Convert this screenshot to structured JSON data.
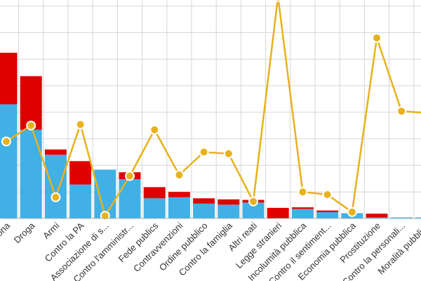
{
  "chart_data": {
    "type": "bar",
    "bar_mode": "stacked",
    "categories": [
      "Persona",
      "Droga",
      "Armi",
      "Contro la PA",
      "Associazione di s...",
      "Contro l'amministr...",
      "Fede publics",
      "Contravvenzioni",
      "Ordine pubblico",
      "Contro la famiglia",
      "Altri reati",
      "Legge stranieri",
      "Incolumità pubblica",
      "Contro il sentiment...",
      "Economia pubblica",
      "Prostituzione",
      "Contro la personali...",
      "Moralità pubblica"
    ],
    "series": [
      {
        "color": "#41b0e4",
        "values": [
          215,
          167,
          120,
          64,
          92,
          74,
          38,
          40,
          28,
          26,
          30,
          0,
          18,
          12,
          10,
          2,
          2,
          2
        ]
      },
      {
        "color": "#e00000",
        "values": [
          97,
          101,
          10,
          44,
          0,
          13,
          21,
          10,
          10,
          10,
          5,
          20,
          3,
          3,
          0,
          7,
          0,
          0
        ]
      },
      {
        "type": "line",
        "color": "#e8b21d",
        "values": [
          145,
          175,
          40,
          177,
          5,
          80,
          167,
          82,
          125,
          122,
          32,
          417,
          50,
          45,
          12,
          340,
          202,
          199
        ]
      }
    ],
    "ylim": [
      0,
      418
    ],
    "grid": true,
    "legend": "none"
  }
}
